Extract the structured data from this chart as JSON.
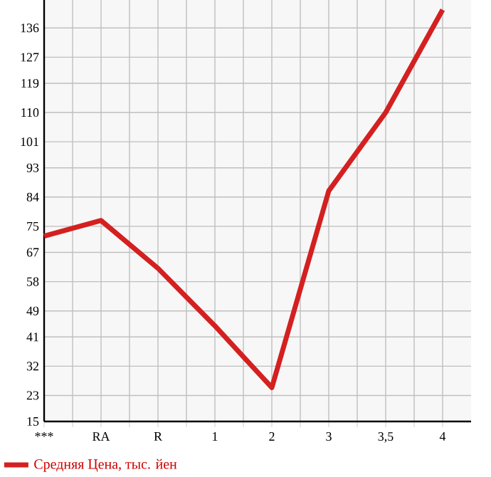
{
  "chart_data": {
    "type": "line",
    "categories": [
      "***",
      "RA",
      "R",
      "1",
      "2",
      "3",
      "3,5",
      "4"
    ],
    "series": [
      {
        "name": "Средняя Цена, тыс. йен",
        "color": "#d42020",
        "values": [
          72,
          76.8,
          62.1,
          44.4,
          25.4,
          85.9,
          110,
          141.6
        ]
      }
    ],
    "ylim": [
      15,
      144.6
    ],
    "yticks": [
      15,
      23,
      32,
      41,
      49,
      58,
      67,
      75,
      84,
      93,
      101,
      110,
      119,
      127,
      136
    ],
    "grid": true,
    "legend": "bottom",
    "marker": "none",
    "line_style": "solid"
  }
}
